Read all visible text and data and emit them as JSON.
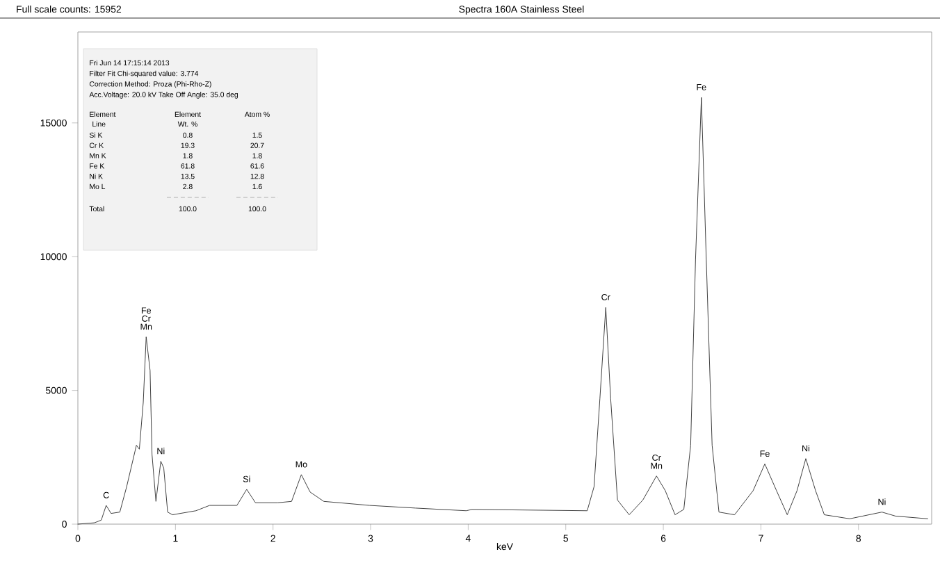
{
  "chart_data": {
    "type": "line",
    "title": "Spectra 160A Stainless Steel",
    "xlabel": "keV",
    "x": [
      0,
      0.17,
      0.24,
      0.29,
      0.34,
      0.43,
      0.5,
      0.6,
      0.63,
      0.67,
      0.7,
      0.74,
      0.76,
      0.8,
      0.85,
      0.88,
      0.92,
      0.97,
      1.21,
      1.35,
      1.63,
      1.73,
      1.82,
      2.05,
      2.19,
      2.29,
      2.38,
      2.52,
      2.99,
      3.46,
      3.98,
      4.04,
      5.22,
      5.29,
      5.35,
      5.41,
      5.46,
      5.53,
      5.65,
      5.79,
      5.93,
      6.02,
      6.12,
      6.21,
      6.28,
      6.33,
      6.39,
      6.44,
      6.5,
      6.57,
      6.73,
      6.92,
      7.04,
      7.16,
      7.27,
      7.37,
      7.46,
      7.56,
      7.65,
      7.91,
      8.24,
      8.38,
      8.71
    ],
    "series": [
      {
        "color": "#404040",
        "values": [
          0,
          50,
          150,
          700,
          400,
          450,
          1400,
          2950,
          2800,
          4550,
          7000,
          5750,
          2600,
          850,
          2350,
          2100,
          450,
          350,
          500,
          700,
          700,
          1300,
          800,
          800,
          850,
          1850,
          1200,
          850,
          700,
          600,
          500,
          550,
          500,
          1400,
          4700,
          8100,
          4700,
          900,
          350,
          900,
          1800,
          1250,
          350,
          550,
          2950,
          9900,
          15952,
          9900,
          2950,
          450,
          350,
          1250,
          2250,
          1250,
          350,
          1250,
          2450,
          1250,
          350,
          200,
          450,
          300,
          200
        ]
      }
    ],
    "xlim": [
      0,
      8.75
    ],
    "ylim": [
      0,
      18400
    ],
    "xticks": [
      0,
      1,
      2,
      3,
      4,
      5,
      6,
      7,
      8
    ],
    "yticks": [
      0,
      5000,
      10000,
      15000
    ],
    "grid": false,
    "marker": "none",
    "line_style": "solid",
    "annotations": [
      "Full scale counts: 15952",
      "Fri Jun 14 17:15:14 2013",
      "Filter Fit   Chi-squared value:  3.774",
      "Correction Method:  Proza (Phi-Rho-Z)",
      "Acc.Voltage: 20.0 kV  Take Off Angle: 35.0 deg",
      "Element",
      "Element",
      "Atom %",
      "Line",
      "Wt. %",
      "Si K",
      "0.8",
      "1.5",
      "Cr K",
      "19.3",
      "20.7",
      "Mn K",
      "1.8",
      "1.8",
      "Fe K",
      "61.8",
      "61.6",
      "Ni K",
      "13.5",
      "12.8",
      "Mo L",
      "2.8",
      "1.6",
      "Total",
      "100.0",
      "100.0",
      {
        "text": "C",
        "x": 0.29,
        "y": 700
      },
      {
        "text": "Mn",
        "x": 0.7,
        "y": 7000
      },
      {
        "text": "Cr",
        "x": 0.7,
        "y": 7000
      },
      {
        "text": "Fe",
        "x": 0.7,
        "y": 7000
      },
      {
        "text": "Ni",
        "x": 0.85,
        "y": 2350
      },
      {
        "text": "Si",
        "x": 1.73,
        "y": 1300
      },
      {
        "text": "Mo",
        "x": 2.29,
        "y": 1850
      },
      {
        "text": "Cr",
        "x": 5.41,
        "y": 8100
      },
      {
        "text": "Mn",
        "x": 5.93,
        "y": 1800
      },
      {
        "text": "Cr",
        "x": 5.93,
        "y": 1800
      },
      {
        "text": "Fe",
        "x": 6.39,
        "y": 15952
      },
      {
        "text": "Fe",
        "x": 7.04,
        "y": 2250
      },
      {
        "text": "Ni",
        "x": 7.46,
        "y": 2450
      },
      {
        "text": "Ni",
        "x": 8.24,
        "y": 450
      }
    ]
  }
}
